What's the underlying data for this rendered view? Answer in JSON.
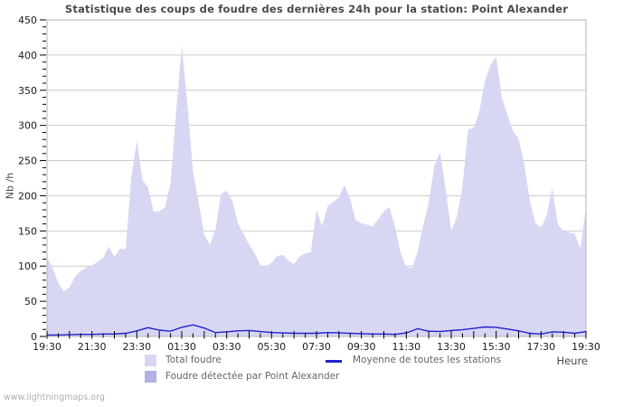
{
  "title": "Statistique des coups de foudre des dernières 24h pour la station: Point Alexander",
  "watermark": "www.lightningmaps.org",
  "axes": {
    "y_label": "Nb /h",
    "x_label": "Heure",
    "y_ticks": [
      0,
      50,
      100,
      150,
      200,
      250,
      300,
      350,
      400,
      450
    ],
    "y_minor_step": 10,
    "x_tick_labels": [
      "19:30",
      "21:30",
      "23:30",
      "01:30",
      "03:30",
      "05:30",
      "07:30",
      "09:30",
      "11:30",
      "13:30",
      "15:30",
      "17:30",
      "19:30"
    ],
    "x_minor_tick_minutes": 30
  },
  "legend": {
    "items": [
      {
        "label": "Total foudre",
        "swatch": "area",
        "color": "#d7d7f4"
      },
      {
        "label": "Moyenne de toutes les stations",
        "swatch": "line",
        "color": "#2222cc"
      },
      {
        "label": "Foudre détectée par Point Alexander",
        "swatch": "area",
        "color": "#b1b1e7"
      }
    ]
  },
  "colors": {
    "area_total": "#d7d7f4",
    "area_detected": "#b1b1e7",
    "mean_line": "#2222cc",
    "gridline": "#cccccc",
    "frame": "#b5b5b5",
    "tick": "#000000",
    "title_text": "#4a4a4a",
    "legend_text": "#666666",
    "watermark_text": "#aeaeae"
  },
  "chart_data": {
    "type": "area",
    "title": "Statistique des coups de foudre des dernières 24h pour la station: Point Alexander",
    "xlabel": "Heure",
    "ylabel": "Nb /h",
    "ylim": [
      0,
      450
    ],
    "x_start": "19:30",
    "x_span_hours": 24,
    "x_tick_labels": [
      "19:30",
      "21:30",
      "23:30",
      "01:30",
      "03:30",
      "05:30",
      "07:30",
      "09:30",
      "11:30",
      "13:30",
      "15:30",
      "17:30",
      "19:30"
    ],
    "grid": "horizontal",
    "legend_position": "bottom",
    "series": [
      {
        "name": "Total foudre",
        "type": "area",
        "color": "#d7d7f4",
        "interval_minutes": 15,
        "values": [
          113,
          97,
          76,
          64,
          70,
          85,
          93,
          98,
          101,
          106,
          112,
          128,
          113,
          125,
          124,
          225,
          278,
          222,
          212,
          177,
          178,
          183,
          217,
          320,
          413,
          330,
          235,
          190,
          145,
          130,
          152,
          203,
          207,
          193,
          161,
          146,
          131,
          118,
          101,
          99,
          105,
          114,
          116,
          108,
          103,
          114,
          118,
          120,
          180,
          157,
          185,
          191,
          198,
          215,
          195,
          165,
          161,
          159,
          156,
          167,
          178,
          184,
          155,
          118,
          99,
          97,
          120,
          157,
          191,
          243,
          262,
          210,
          150,
          170,
          213,
          294,
          296,
          320,
          363,
          386,
          398,
          340,
          315,
          292,
          281,
          245,
          193,
          161,
          155,
          172,
          211,
          159,
          150,
          148,
          146,
          125,
          183
        ]
      },
      {
        "name": "Foudre détectée par Point Alexander",
        "type": "area",
        "color": "#b1b1e7",
        "interval_minutes": 15,
        "visible_in_plot": false,
        "values": []
      },
      {
        "name": "Moyenne de toutes les stations",
        "type": "line",
        "color": "#2222cc",
        "interval_minutes": 30,
        "values": [
          2,
          2,
          2.5,
          3,
          3,
          3.5,
          3.5,
          4.5,
          8,
          12.5,
          9,
          7.5,
          13,
          16.5,
          12,
          5.5,
          6.5,
          8,
          8.5,
          7,
          5.5,
          5,
          4.5,
          4.5,
          4.5,
          5.5,
          5,
          4.5,
          4,
          3.5,
          3.5,
          3,
          5,
          11,
          7.5,
          7,
          8.5,
          9.5,
          11.5,
          13.5,
          13,
          10.5,
          8,
          4.5,
          3.5,
          6.5,
          6,
          4.5,
          7
        ]
      }
    ]
  }
}
